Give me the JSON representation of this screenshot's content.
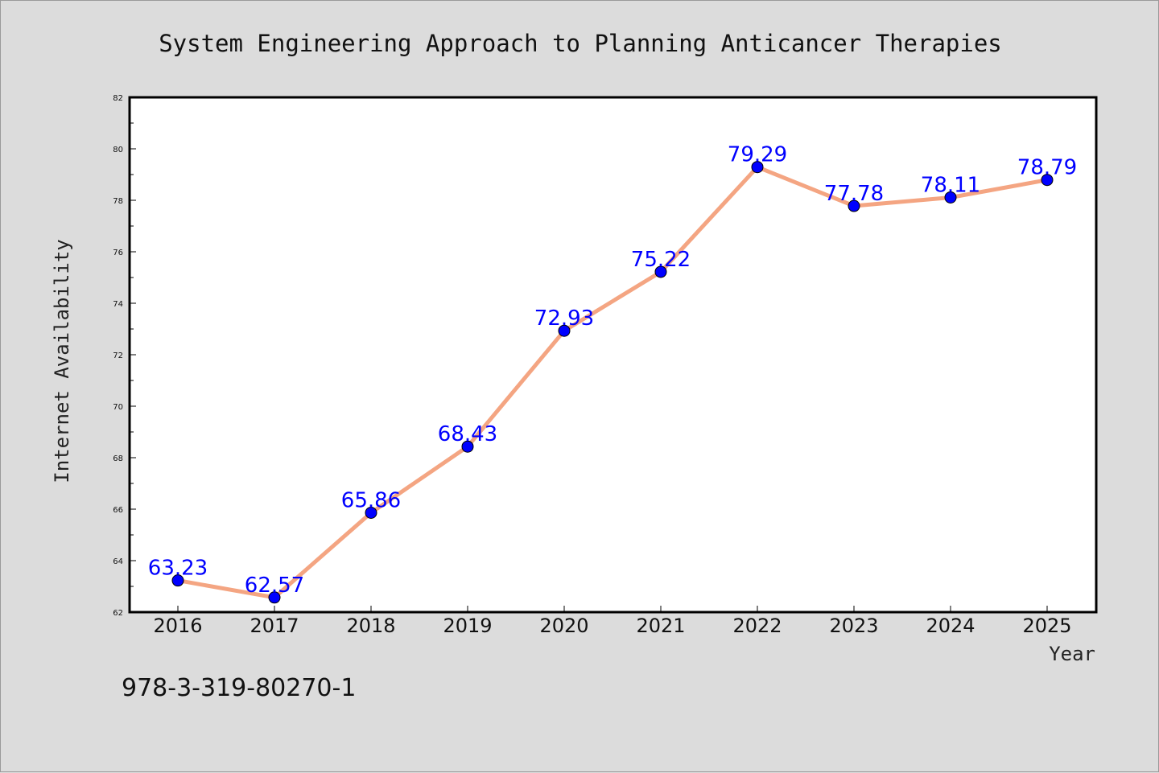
{
  "chart_data": {
    "type": "line",
    "title": "System Engineering Approach to Planning Anticancer Therapies",
    "xlabel": "Year",
    "ylabel": "Internet Availability",
    "categories": [
      "2016",
      "2017",
      "2018",
      "2019",
      "2020",
      "2021",
      "2022",
      "2023",
      "2024",
      "2025"
    ],
    "series": [
      {
        "values": [
          63.23,
          62.57,
          65.86,
          68.43,
          72.93,
          75.22,
          79.29,
          77.78,
          78.11,
          78.79
        ]
      }
    ],
    "data_labels": [
      "63.23",
      "62.57",
      "65.86",
      "68.43",
      "72.93",
      "75.22",
      "79.29",
      "77.78",
      "78.11",
      "78.79"
    ],
    "ylim": [
      62,
      82
    ],
    "yticks": [
      "62",
      "64",
      "66",
      "68",
      "70",
      "72",
      "74",
      "76",
      "78",
      "80",
      "82"
    ],
    "grid": false,
    "legend": "none",
    "colors": {
      "line": "#f4a582",
      "marker": "#0000ff",
      "data_label": "#0000ff",
      "background": "#dcdcdc",
      "plot_background": "#ffffff"
    }
  },
  "annotation": "978-3-319-80270-1"
}
